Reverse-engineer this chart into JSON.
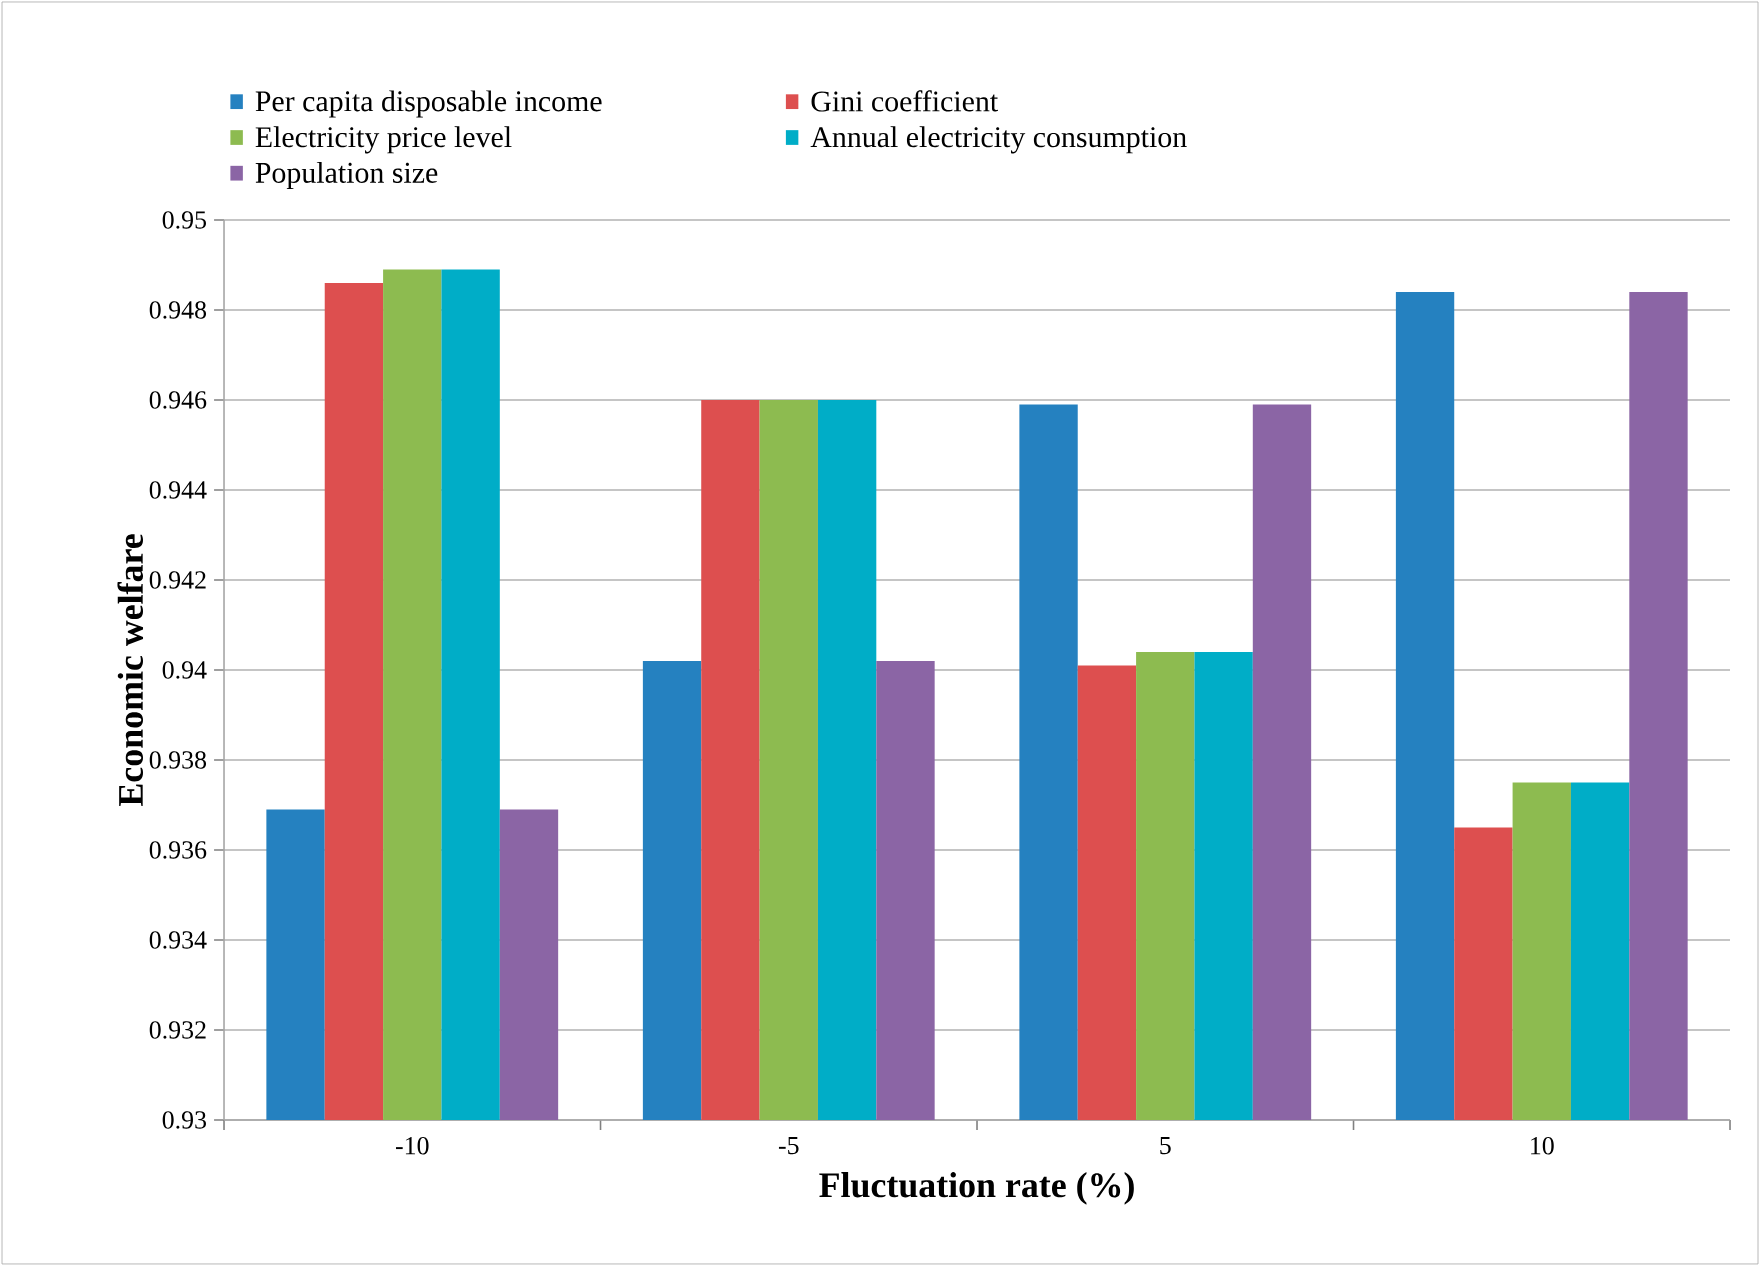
{
  "chart_data": {
    "type": "bar",
    "xlabel": "Fluctuation rate (%)",
    "ylabel": "Economic welfare",
    "categories": [
      "-10",
      "-5",
      "5",
      "10"
    ],
    "series": [
      {
        "name": "Per capita disposable income",
        "color": "#2581c0",
        "values": [
          0.9369,
          0.9402,
          0.9459,
          0.9484
        ]
      },
      {
        "name": "Gini coefficient",
        "color": "#dd4f4f",
        "values": [
          0.9486,
          0.946,
          0.9401,
          0.9365
        ]
      },
      {
        "name": "Electricity price level",
        "color": "#8dbb50",
        "values": [
          0.9489,
          0.946,
          0.9404,
          0.9375
        ]
      },
      {
        "name": "Annual electricity consumption",
        "color": "#00adc7",
        "values": [
          0.9489,
          0.946,
          0.9404,
          0.9375
        ]
      },
      {
        "name": "Population size",
        "color": "#8b65a5",
        "values": [
          0.9369,
          0.9402,
          0.9459,
          0.9484
        ]
      }
    ],
    "ylim": [
      0.93,
      0.95
    ],
    "yticks": [
      0.93,
      0.932,
      0.934,
      0.936,
      0.938,
      0.94,
      0.942,
      0.944,
      0.946,
      0.948,
      0.95
    ],
    "grid": "y",
    "legend": "top"
  }
}
